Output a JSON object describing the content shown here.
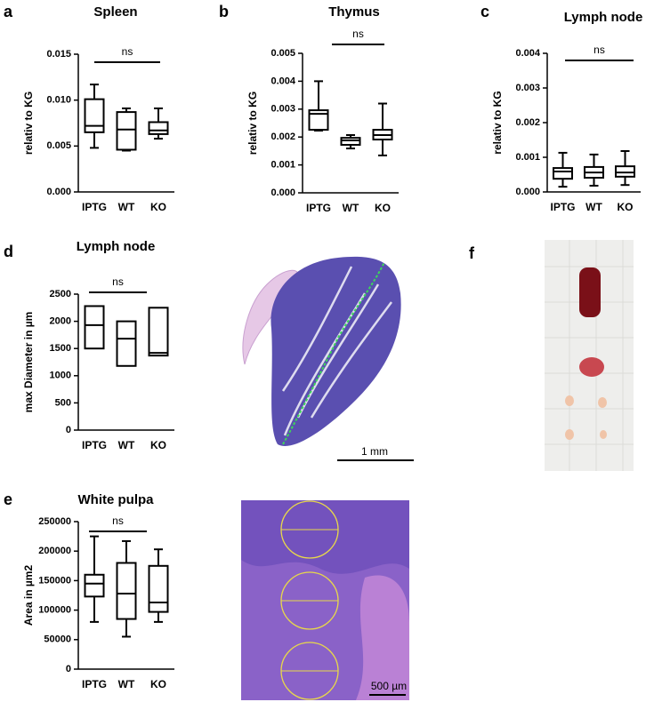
{
  "chart_data": [
    {
      "type": "box",
      "panel_label": "a",
      "title": "Spleen",
      "ylabel": "relativ to KG",
      "annotation": "ns",
      "categories": [
        "IPTG",
        "WT",
        "KO"
      ],
      "boxes": [
        {
          "min": 0.0048,
          "q1": 0.0065,
          "median": 0.0072,
          "q3": 0.0101,
          "max": 0.0117
        },
        {
          "min": 0.0045,
          "q1": 0.0046,
          "median": 0.0068,
          "q3": 0.0087,
          "max": 0.0091
        },
        {
          "min": 0.0058,
          "q1": 0.0063,
          "median": 0.0067,
          "q3": 0.0076,
          "max": 0.0091
        }
      ],
      "ylim": [
        0,
        0.015
      ],
      "yticks": [
        {
          "value": 0,
          "label": "0.000"
        },
        {
          "value": 0.005,
          "label": "0.005"
        },
        {
          "value": 0.01,
          "label": "0.010"
        },
        {
          "value": 0.015,
          "label": "0.015"
        }
      ]
    },
    {
      "type": "box",
      "panel_label": "b",
      "title": "Thymus",
      "ylabel": "relativ to KG",
      "annotation": "ns",
      "categories": [
        "IPTG",
        "WT",
        "KO"
      ],
      "boxes": [
        {
          "min": 0.00223,
          "q1": 0.00226,
          "median": 0.00283,
          "q3": 0.00296,
          "max": 0.004
        },
        {
          "min": 0.00159,
          "q1": 0.00172,
          "median": 0.00188,
          "q3": 0.00197,
          "max": 0.00207
        },
        {
          "min": 0.00134,
          "q1": 0.00191,
          "median": 0.00207,
          "q3": 0.00226,
          "max": 0.0032
        }
      ],
      "ylim": [
        0,
        0.005
      ],
      "yticks": [
        {
          "value": 0,
          "label": "0.000"
        },
        {
          "value": 0.001,
          "label": "0.001"
        },
        {
          "value": 0.002,
          "label": "0.002"
        },
        {
          "value": 0.003,
          "label": "0.003"
        },
        {
          "value": 0.004,
          "label": "0.004"
        },
        {
          "value": 0.005,
          "label": "0.005"
        }
      ]
    },
    {
      "type": "box",
      "panel_label": "c",
      "title": "Lymph node",
      "ylabel": "relativ to KG",
      "annotation": "ns",
      "categories": [
        "IPTG",
        "WT",
        "KO"
      ],
      "boxes": [
        {
          "min": 0.00015,
          "q1": 0.00038,
          "median": 0.00059,
          "q3": 0.00069,
          "max": 0.00113
        },
        {
          "min": 0.00018,
          "q1": 0.00041,
          "median": 0.00056,
          "q3": 0.00072,
          "max": 0.00108
        },
        {
          "min": 0.0002,
          "q1": 0.00044,
          "median": 0.00056,
          "q3": 0.00074,
          "max": 0.00118
        }
      ],
      "ylim": [
        0,
        0.004
      ],
      "yticks": [
        {
          "value": 0,
          "label": "0.000"
        },
        {
          "value": 0.001,
          "label": "0.001"
        },
        {
          "value": 0.002,
          "label": "0.002"
        },
        {
          "value": 0.003,
          "label": "0.003"
        },
        {
          "value": 0.004,
          "label": "0.004"
        }
      ]
    },
    {
      "type": "floating_bar",
      "panel_label": "d",
      "title": "Lymph node",
      "ylabel": "max Diameter in µm",
      "annotation": "ns",
      "categories": [
        "IPTG",
        "WT",
        "KO"
      ],
      "boxes": [
        {
          "min": 1500,
          "median": 1930,
          "max": 2280
        },
        {
          "min": 1180,
          "median": 1680,
          "max": 2000
        },
        {
          "min": 1370,
          "median": 1420,
          "max": 2250
        }
      ],
      "ylim": [
        0,
        2500
      ],
      "yticks": [
        0,
        500,
        1000,
        1500,
        2000,
        2500
      ]
    },
    {
      "type": "box",
      "panel_label": "e",
      "title": "White pulpa",
      "ylabel": "Area in µm2",
      "annotation": "ns",
      "categories": [
        "IPTG",
        "WT",
        "KO"
      ],
      "boxes": [
        {
          "min": 80000,
          "q1": 123000,
          "median": 145000,
          "q3": 160000,
          "max": 225000
        },
        {
          "min": 55000,
          "q1": 85000,
          "median": 128000,
          "q3": 180000,
          "max": 217000
        },
        {
          "min": 80000,
          "q1": 97000,
          "median": 113000,
          "q3": 175000,
          "max": 203000
        }
      ],
      "ylim": [
        0,
        250000
      ],
      "yticks": [
        0,
        50000,
        100000,
        150000,
        200000,
        250000
      ]
    }
  ],
  "images": [
    {
      "scale_bar": "1 mm"
    },
    {
      "scale_bar": "500 µm"
    },
    {
      "panel_label": "f"
    }
  ]
}
